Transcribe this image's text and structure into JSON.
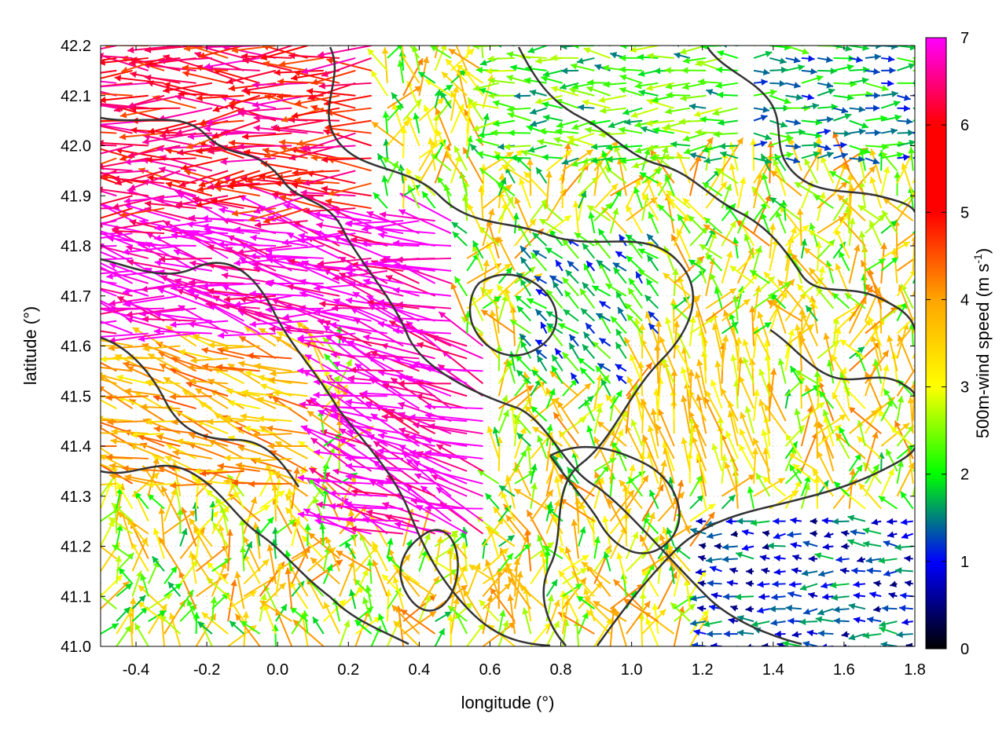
{
  "chart_data": {
    "type": "vector-field",
    "xlabel": "longitude (°)",
    "ylabel": "latitude (°)",
    "xlim": [
      -0.5,
      1.8
    ],
    "ylim": [
      41.0,
      42.2
    ],
    "xticks": [
      -0.4,
      -0.2,
      0.0,
      0.2,
      0.4,
      0.6,
      0.8,
      1.0,
      1.2,
      1.4,
      1.6,
      1.8
    ],
    "xtick_labels": [
      "-0.4",
      "-0.2",
      "0.0",
      "0.2",
      "0.4",
      "0.6",
      "0.8",
      "1.0",
      "1.2",
      "1.4",
      "1.6",
      "1.8"
    ],
    "yticks": [
      41.0,
      41.1,
      41.2,
      41.3,
      41.4,
      41.5,
      41.6,
      41.7,
      41.8,
      41.9,
      42.0,
      42.1,
      42.2
    ],
    "ytick_labels": [
      "41.0",
      "41.1",
      "41.2",
      "41.3",
      "41.4",
      "41.5",
      "41.6",
      "41.7",
      "41.8",
      "41.9",
      "42.0",
      "42.1",
      "42.2"
    ],
    "grid": true,
    "colorbar": {
      "label": "500m-wind speed (m s",
      "label_sup": "-1",
      "label_end": ")",
      "range": [
        0,
        7
      ],
      "ticks": [
        0,
        1,
        2,
        3,
        4,
        5,
        6,
        7
      ],
      "tick_labels": [
        "0",
        "1",
        "2",
        "3",
        "4",
        "5",
        "6",
        "7"
      ],
      "palette": [
        "#000000",
        "#0000ff",
        "#00ff00",
        "#ffff00",
        "#ffa500",
        "#ff0000",
        "#ff00ff"
      ]
    },
    "wind_regions": [
      {
        "lon": [
          -0.5,
          0.3
        ],
        "lat": [
          41.85,
          42.2
        ],
        "speed": 6.0,
        "direction_deg": 180
      },
      {
        "lon": [
          -0.5,
          0.5
        ],
        "lat": [
          41.6,
          41.85
        ],
        "speed": 7.0,
        "direction_deg": 170
      },
      {
        "lon": [
          0.2,
          0.6
        ],
        "lat": [
          41.2,
          41.6
        ],
        "speed": 7.0,
        "direction_deg": 160
      },
      {
        "lon": [
          -0.5,
          0.1
        ],
        "lat": [
          41.3,
          41.6
        ],
        "speed": 4.5,
        "direction_deg": 165
      },
      {
        "lon": [
          0.7,
          1.1
        ],
        "lat": [
          41.5,
          41.8
        ],
        "speed": 2.0,
        "direction_deg": 135
      },
      {
        "lon": [
          1.0,
          1.4
        ],
        "lat": [
          41.3,
          41.6
        ],
        "speed": 4.0,
        "direction_deg": 100
      },
      {
        "lon": [
          1.2,
          1.8
        ],
        "lat": [
          41.0,
          41.25
        ],
        "speed": 1.3,
        "direction_deg": 180
      },
      {
        "lon": [
          1.3,
          1.8
        ],
        "lat": [
          41.95,
          42.2
        ],
        "speed": 2.0,
        "direction_deg": 0
      },
      {
        "lon": [
          0.6,
          1.3
        ],
        "lat": [
          41.95,
          42.2
        ],
        "speed": 2.5,
        "direction_deg": 180
      }
    ]
  }
}
